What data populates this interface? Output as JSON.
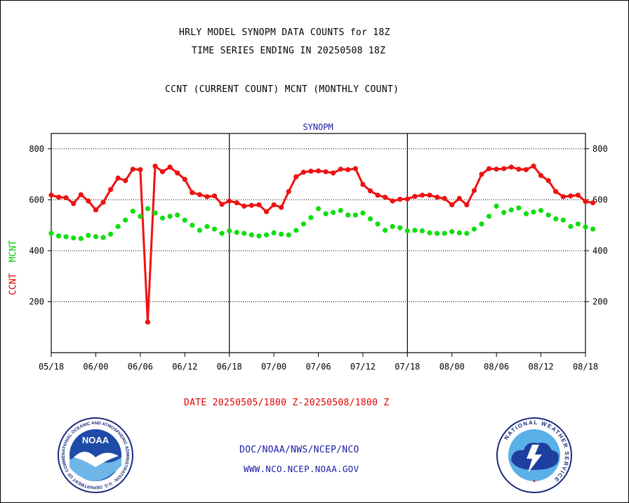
{
  "header": {
    "title_line1": "HRLY MODEL SYNOPM DATA COUNTS for 18Z",
    "title_line2": "TIME SERIES ENDING IN 20250508 18Z",
    "subtitle": "CCNT (CURRENT COUNT) MCNT (MONTHLY COUNT)"
  },
  "footer": {
    "date_range": "DATE 20250505/1800 Z-20250508/1800 Z",
    "org_line": "DOC/NOAA/NWS/NCEP/NCO",
    "website": "WWW.NCO.NCEP.NOAA.GOV"
  },
  "logos": {
    "noaa_text": "NOAA",
    "noaa_ring_text": "NATIONAL OCEANIC AND ATMOSPHERIC ADMINISTRATION · U.S. DEPARTMENT OF COMMERCE",
    "nws_ring_text": "NATIONAL WEATHER SERVICE"
  },
  "colors": {
    "ccnt": "#ee1111",
    "mcnt": "#11dd11",
    "title_blue": "#1a1aa6",
    "axis": "#000000"
  },
  "chart_data": {
    "type": "line",
    "title": "SYNOPM",
    "ylabel_parts": [
      "CCNT",
      "MCNT"
    ],
    "ylim": [
      0,
      860
    ],
    "yticks": [
      200,
      400,
      600,
      800
    ],
    "grid": true,
    "x_tick_labels": [
      "05/18",
      "06/00",
      "06/06",
      "06/12",
      "06/18",
      "07/00",
      "07/06",
      "07/12",
      "07/18",
      "08/00",
      "08/06",
      "08/12",
      "08/18"
    ],
    "x_hours_per_tick": 6,
    "x_start": "2025-05-05 18Z",
    "x_end": "2025-05-08 18Z",
    "series": [
      {
        "name": "CCNT",
        "color": "#ee1111",
        "values": [
          618,
          610,
          608,
          585,
          620,
          595,
          560,
          590,
          640,
          685,
          675,
          720,
          718,
          120,
          732,
          710,
          728,
          705,
          680,
          628,
          620,
          612,
          615,
          582,
          595,
          588,
          575,
          578,
          580,
          553,
          580,
          570,
          632,
          690,
          708,
          712,
          713,
          710,
          705,
          720,
          718,
          722,
          660,
          635,
          618,
          610,
          595,
          602,
          603,
          613,
          618,
          618,
          610,
          605,
          580,
          605,
          580,
          636,
          700,
          722,
          720,
          722,
          728,
          720,
          718,
          732,
          695,
          675,
          632,
          612,
          615,
          618,
          593,
          588
        ],
        "start_hour": 0
      },
      {
        "name": "MCNT",
        "color": "#11dd11",
        "values": [
          468,
          458,
          455,
          450,
          448,
          460,
          455,
          452,
          465,
          495,
          520,
          555,
          535,
          565,
          548,
          528,
          535,
          540,
          520,
          500,
          480,
          495,
          485,
          468,
          478,
          472,
          468,
          462,
          458,
          462,
          470,
          465,
          462,
          480,
          505,
          530,
          565,
          545,
          550,
          558,
          540,
          540,
          548,
          525,
          505,
          480,
          495,
          490,
          478,
          480,
          478,
          470,
          468,
          468,
          475,
          470,
          468,
          485,
          505,
          535,
          575,
          550,
          560,
          568,
          545,
          552,
          558,
          540,
          525,
          520,
          495,
          505,
          493,
          485
        ],
        "start_hour": 0
      }
    ]
  }
}
